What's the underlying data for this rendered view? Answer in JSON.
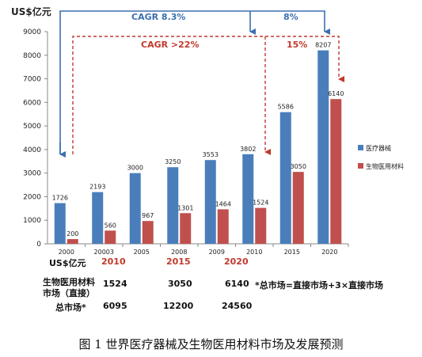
{
  "chart_data": {
    "type": "bar",
    "ylabel": "US$亿元",
    "ylim": [
      0,
      9000
    ],
    "yticks": [
      0,
      1000,
      2000,
      3000,
      4000,
      5000,
      6000,
      7000,
      8000,
      9000
    ],
    "categories": [
      "2000",
      "20003",
      "2005",
      "2008",
      "2009",
      "2010",
      "2015",
      "2020"
    ],
    "series": [
      {
        "name": "医疗器械",
        "color": "#4a7ebb",
        "values": [
          1726,
          2193,
          3000,
          3250,
          3553,
          3802,
          5586,
          8207
        ]
      },
      {
        "name": "生物医用材料",
        "color": "#c0504d",
        "values": [
          200,
          560,
          967,
          1301,
          1464,
          1524,
          3050,
          6140
        ]
      }
    ],
    "legend_position": "right",
    "grid": false,
    "annotations": {
      "top_left": "CAGR 8.3%",
      "top_right": "8%",
      "inner_left": "CAGR >22%",
      "inner_right": "15%"
    }
  },
  "table": {
    "header_label": "US$亿元",
    "years": [
      "2010",
      "2015",
      "2020"
    ],
    "row1_label_line1": "生物医用材料",
    "row1_label_line2": "市场（直接）",
    "row1_values": [
      "1524",
      "3050",
      "6140"
    ],
    "row2_label": "总市场*",
    "row2_values": [
      "6095",
      "12200",
      "24560"
    ],
    "note": "*总市场=直接市场+3×直接市场"
  },
  "caption": "图 1  世界医疗器械及生物医用材料市场及发展预测"
}
